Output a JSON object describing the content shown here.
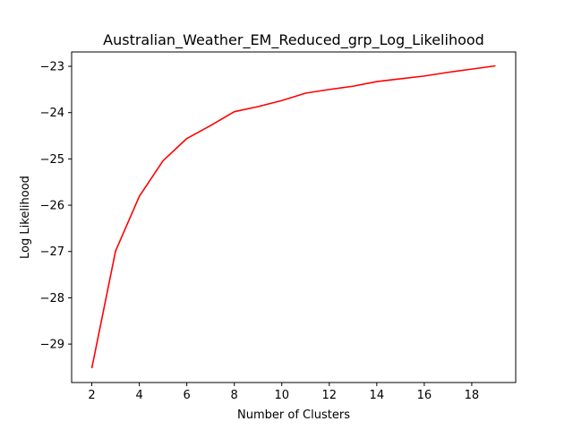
{
  "chart_data": {
    "type": "line",
    "title": "Australian_Weather_EM_Reduced_grp_Log_Likelihood",
    "xlabel": "Number of Clusters",
    "ylabel": "Log Likelihood",
    "xlim": [
      1.15,
      19.85
    ],
    "ylim": [
      -29.83,
      -22.69
    ],
    "xticks": [
      2,
      4,
      6,
      8,
      10,
      12,
      14,
      16,
      18
    ],
    "xtick_labels": [
      "2",
      "4",
      "6",
      "8",
      "10",
      "12",
      "14",
      "16",
      "18"
    ],
    "yticks": [
      -29,
      -28,
      -27,
      -26,
      -25,
      -24,
      -23
    ],
    "ytick_labels": [
      "−29",
      "−28",
      "−27",
      "−26",
      "−25",
      "−24",
      "−23"
    ],
    "grid": false,
    "series": [
      {
        "color": "#ff0000",
        "x": [
          2,
          3,
          4,
          5,
          6,
          7,
          8,
          9,
          10,
          11,
          12,
          13,
          14,
          15,
          16,
          17,
          18,
          19
        ],
        "y": [
          -29.52,
          -26.99,
          -25.81,
          -25.04,
          -24.56,
          -24.28,
          -23.98,
          -23.87,
          -23.74,
          -23.58,
          -23.5,
          -23.43,
          -23.33,
          -23.27,
          -23.21,
          -23.13,
          -23.06,
          -22.99
        ]
      }
    ]
  }
}
